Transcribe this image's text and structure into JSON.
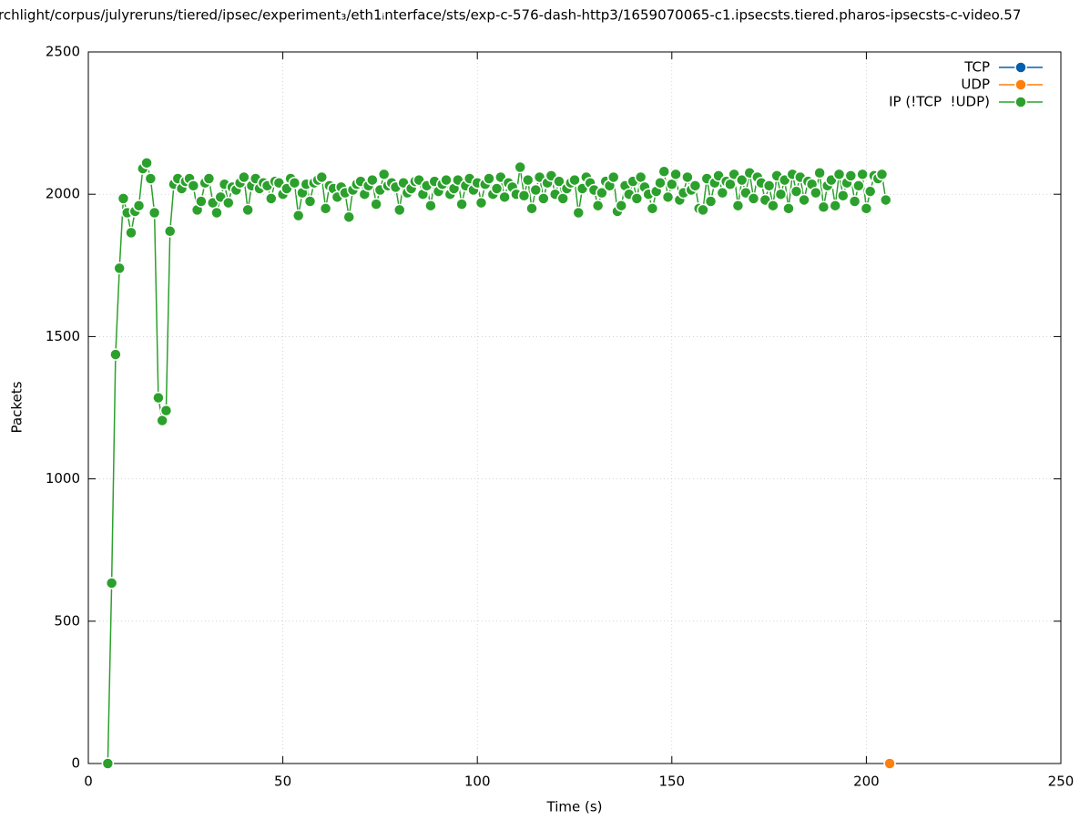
{
  "chart_data": {
    "type": "line",
    "title": "rchlight/corpus/julyreruns/tiered/ipsec/experiment₃/eth1ᵢnterface/sts/exp-c-576-dash-http3/1659070065-c1.ipsecsts.tiered.pharos-ipsecsts-c-video.57",
    "x_label": "Time (s)",
    "y_label": "Packets",
    "xlim": [
      0,
      250
    ],
    "xticks": [
      0,
      50,
      100,
      150,
      200,
      250
    ],
    "ylim": [
      0,
      2500
    ],
    "yticks": [
      0,
      500,
      1000,
      1500,
      2000,
      2500
    ],
    "grid": true,
    "legend": "top-right",
    "series": [
      {
        "name": "TCP",
        "color": "#0060ad",
        "x": [],
        "values": []
      },
      {
        "name": "UDP",
        "color": "#ff7f0e",
        "x": [
          206
        ],
        "values": [
          0
        ]
      },
      {
        "name": "IP (!TCP  !UDP)",
        "color": "#2ca02c",
        "x": [
          5,
          6,
          7,
          8,
          9,
          10,
          11,
          12,
          13,
          14,
          15,
          16,
          17,
          18,
          19,
          20,
          21,
          22,
          23,
          24,
          25,
          26,
          27,
          28,
          29,
          30,
          31,
          32,
          33,
          34,
          35,
          36,
          37,
          38,
          39,
          40,
          41,
          42,
          43,
          44,
          45,
          46,
          47,
          48,
          49,
          50,
          51,
          52,
          53,
          54,
          55,
          56,
          57,
          58,
          59,
          60,
          61,
          62,
          63,
          64,
          65,
          66,
          67,
          68,
          69,
          70,
          71,
          72,
          73,
          74,
          75,
          76,
          77,
          78,
          79,
          80,
          81,
          82,
          83,
          84,
          85,
          86,
          87,
          88,
          89,
          90,
          91,
          92,
          93,
          94,
          95,
          96,
          97,
          98,
          99,
          100,
          101,
          102,
          103,
          104,
          105,
          106,
          107,
          108,
          109,
          110,
          111,
          112,
          113,
          114,
          115,
          116,
          117,
          118,
          119,
          120,
          121,
          122,
          123,
          124,
          125,
          126,
          127,
          128,
          129,
          130,
          131,
          132,
          133,
          134,
          135,
          136,
          137,
          138,
          139,
          140,
          141,
          142,
          143,
          144,
          145,
          146,
          147,
          148,
          149,
          150,
          151,
          152,
          153,
          154,
          155,
          156,
          157,
          158,
          159,
          160,
          161,
          162,
          163,
          164,
          165,
          166,
          167,
          168,
          169,
          170,
          171,
          172,
          173,
          174,
          175,
          176,
          177,
          178,
          179,
          180,
          181,
          182,
          183,
          184,
          185,
          186,
          187,
          188,
          189,
          190,
          191,
          192,
          193,
          194,
          195,
          196,
          197,
          198,
          199,
          200,
          201,
          202,
          203,
          204,
          205
        ],
        "values": [
          0,
          634,
          1437,
          1740,
          1985,
          1935,
          1865,
          1940,
          1960,
          2090,
          2110,
          2055,
          1935,
          1285,
          1205,
          1240,
          1870,
          2035,
          2055,
          2020,
          2045,
          2055,
          2030,
          1945,
          1975,
          2040,
          2055,
          1970,
          1935,
          1990,
          2035,
          1970,
          2025,
          2015,
          2040,
          2060,
          1945,
          2030,
          2055,
          2020,
          2040,
          2030,
          1985,
          2045,
          2040,
          2000,
          2020,
          2055,
          2040,
          1925,
          2005,
          2035,
          1975,
          2040,
          2050,
          2060,
          1950,
          2030,
          2020,
          1990,
          2025,
          2005,
          1920,
          2015,
          2035,
          2045,
          2000,
          2030,
          2050,
          1965,
          2015,
          2070,
          2030,
          2040,
          2025,
          1945,
          2040,
          2005,
          2020,
          2045,
          2050,
          2000,
          2030,
          1960,
          2045,
          2010,
          2035,
          2050,
          2000,
          2020,
          2050,
          1965,
          2030,
          2055,
          2015,
          2040,
          1970,
          2035,
          2055,
          2000,
          2020,
          2060,
          1990,
          2040,
          2025,
          2000,
          2095,
          1995,
          2050,
          1950,
          2015,
          2060,
          1985,
          2040,
          2065,
          2000,
          2045,
          1985,
          2020,
          2040,
          2050,
          1935,
          2020,
          2060,
          2040,
          2015,
          1960,
          2005,
          2045,
          2030,
          2060,
          1940,
          1960,
          2030,
          2000,
          2045,
          1985,
          2060,
          2025,
          2000,
          1950,
          2010,
          2040,
          2080,
          1990,
          2035,
          2070,
          1980,
          2005,
          2060,
          2015,
          2030,
          1950,
          1945,
          2055,
          1975,
          2040,
          2065,
          2005,
          2045,
          2035,
          2070,
          1960,
          2050,
          2005,
          2075,
          1985,
          2060,
          2040,
          1980,
          2030,
          1960,
          2065,
          2000,
          2050,
          1950,
          2070,
          2010,
          2060,
          1980,
          2045,
          2035,
          2005,
          2075,
          1955,
          2030,
          2050,
          1960,
          2070,
          1995,
          2040,
          2065,
          1975,
          2030,
          2070,
          1950,
          2010,
          2065,
          2055,
          2070,
          1980
        ]
      }
    ]
  }
}
